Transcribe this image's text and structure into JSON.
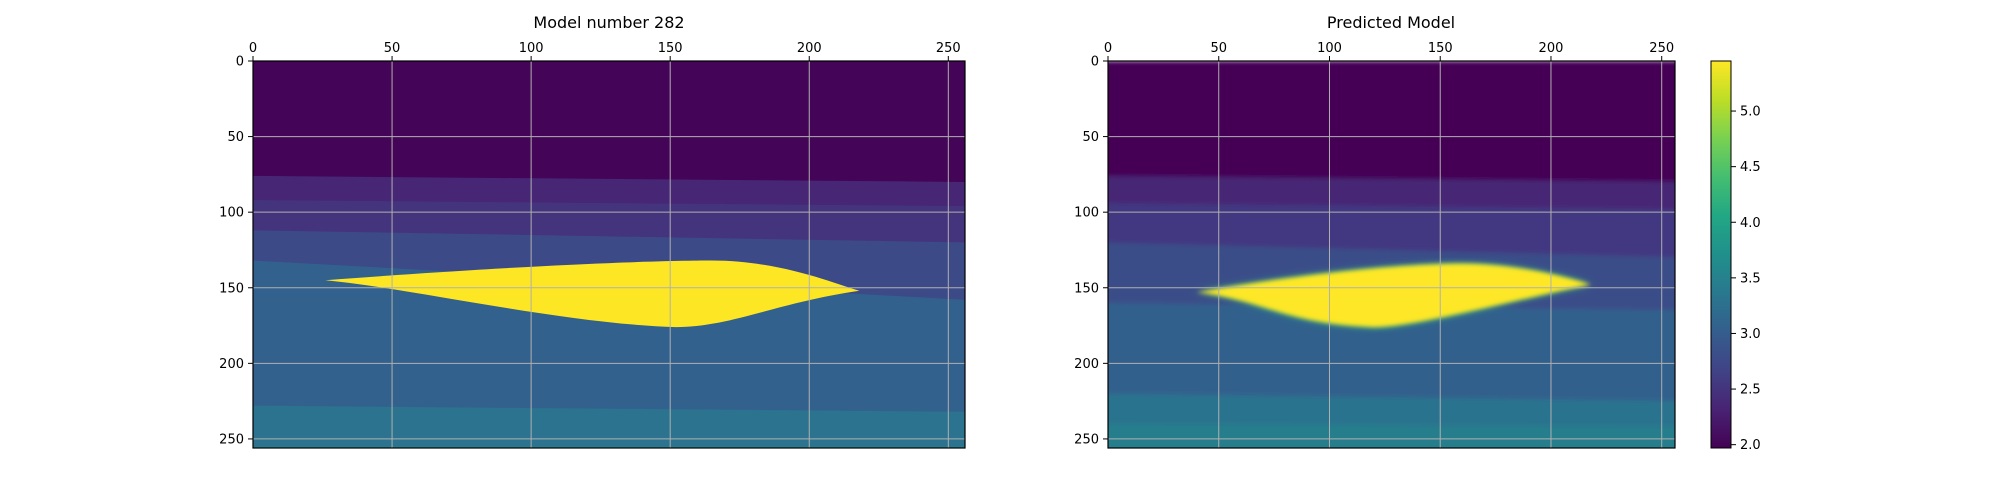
{
  "chart_data": [
    {
      "type": "heatmap",
      "title": "Model number 282",
      "xlabel": "",
      "ylabel": "",
      "x_ticks": [
        0,
        50,
        100,
        150,
        200,
        250
      ],
      "y_ticks": [
        0,
        50,
        100,
        150,
        200,
        250
      ],
      "xlim": [
        0,
        256
      ],
      "ylim": [
        256,
        0
      ],
      "x_axis_position": "top",
      "grid": true,
      "colormap": "viridis",
      "layers": [
        {
          "name": "layer-1",
          "top_left": 0,
          "top_right": 0,
          "value": 2.0
        },
        {
          "name": "layer-2",
          "top_left": 76,
          "top_right": 80,
          "value": 2.35
        },
        {
          "name": "layer-3",
          "top_left": 92,
          "top_right": 96,
          "value": 2.5
        },
        {
          "name": "layer-4",
          "top_left": 112,
          "top_right": 120,
          "value": 2.75
        },
        {
          "name": "layer-5",
          "top_left": 132,
          "top_right": 158,
          "value": 3.05
        },
        {
          "name": "layer-6",
          "top_left": 228,
          "top_right": 232,
          "value": 3.3
        },
        {
          "name": "layer-7",
          "top_left": 255,
          "top_right": 255,
          "value": 3.45
        }
      ],
      "body": {
        "value": 5.45,
        "x_range": [
          26,
          218
        ],
        "top_peak": {
          "x": 165,
          "y": 132
        },
        "bottom_peak": {
          "x": 152,
          "y": 176
        },
        "left_y": 145,
        "right_y": 152
      }
    },
    {
      "type": "heatmap",
      "title": "Predicted Model",
      "xlabel": "",
      "ylabel": "",
      "x_ticks": [
        0,
        50,
        100,
        150,
        200,
        250
      ],
      "y_ticks": [
        0,
        50,
        100,
        150,
        200,
        250
      ],
      "xlim": [
        0,
        256
      ],
      "ylim": [
        256,
        0
      ],
      "x_axis_position": "top",
      "grid": true,
      "colormap": "viridis",
      "layers": [
        {
          "name": "layer-1",
          "top_left": 0,
          "top_right": 0,
          "value": 2.0
        },
        {
          "name": "layer-2",
          "top_left": 76,
          "top_right": 80,
          "value": 2.35
        },
        {
          "name": "layer-3",
          "top_left": 94,
          "top_right": 98,
          "value": 2.55
        },
        {
          "name": "layer-4",
          "top_left": 120,
          "top_right": 130,
          "value": 2.8
        },
        {
          "name": "layer-5",
          "top_left": 160,
          "top_right": 165,
          "value": 3.05
        },
        {
          "name": "layer-6",
          "top_left": 220,
          "top_right": 225,
          "value": 3.3
        },
        {
          "name": "layer-7",
          "top_left": 240,
          "top_right": 242,
          "value": 3.45
        }
      ],
      "body": {
        "value": 5.45,
        "x_range": [
          40,
          218
        ],
        "top_peak": {
          "x": 160,
          "y": 134
        },
        "bottom_peak": {
          "x": 120,
          "y": 176
        },
        "left_y": 153,
        "right_y": 148
      },
      "colorbar": {
        "ticks": [
          2.0,
          2.5,
          3.0,
          3.5,
          4.0,
          4.5,
          5.0
        ],
        "tick_labels": [
          "2.0",
          "2.5",
          "3.0",
          "3.5",
          "4.0",
          "4.5",
          "5.0"
        ],
        "range": [
          1.97,
          5.45
        ]
      }
    }
  ]
}
